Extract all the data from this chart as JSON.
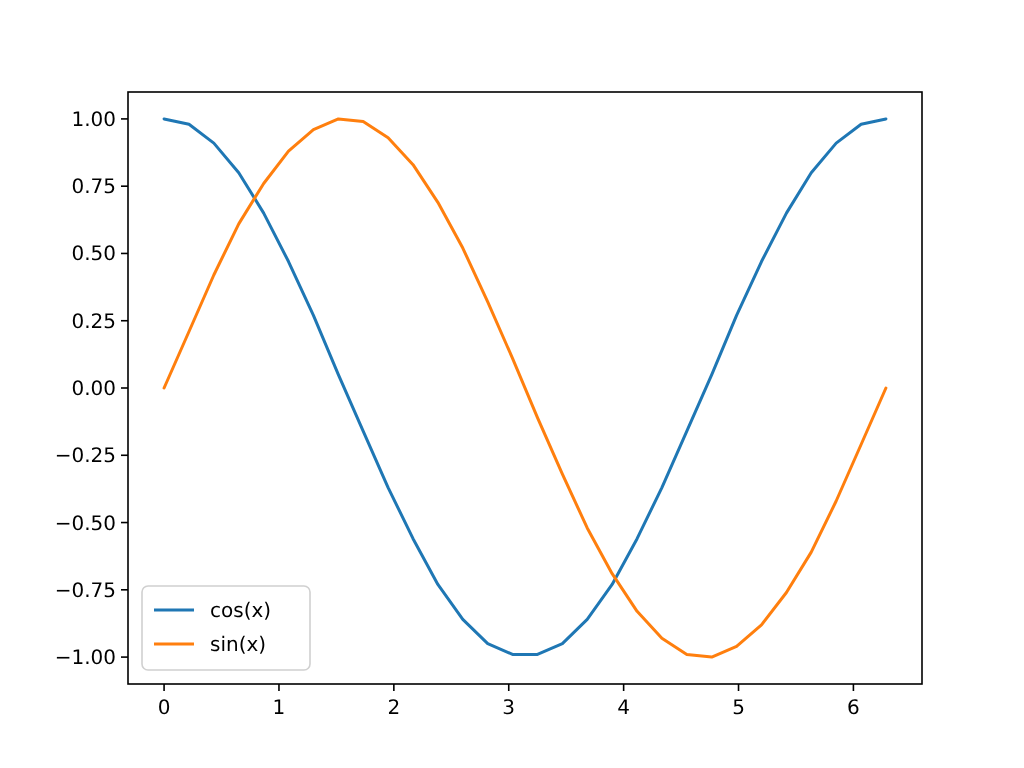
{
  "chart_data": {
    "type": "line",
    "x": [
      0,
      0.217,
      0.433,
      0.65,
      0.867,
      1.083,
      1.3,
      1.517,
      1.733,
      1.95,
      2.167,
      2.383,
      2.6,
      2.817,
      3.033,
      3.25,
      3.467,
      3.683,
      3.9,
      4.117,
      4.333,
      4.55,
      4.767,
      4.983,
      5.2,
      5.417,
      5.633,
      5.85,
      6.067,
      6.283
    ],
    "series": [
      {
        "name": "cos(x)",
        "color": "#1f77b4",
        "values": [
          1,
          0.98,
          0.91,
          0.8,
          0.65,
          0.47,
          0.27,
          0.05,
          -0.16,
          -0.37,
          -0.56,
          -0.73,
          -0.86,
          -0.95,
          -0.99,
          -0.99,
          -0.95,
          -0.86,
          -0.73,
          -0.56,
          -0.37,
          -0.16,
          0.05,
          0.27,
          0.47,
          0.65,
          0.8,
          0.91,
          0.98,
          1
        ]
      },
      {
        "name": "sin(x)",
        "color": "#ff7f0e",
        "values": [
          0,
          0.21,
          0.42,
          0.61,
          0.76,
          0.88,
          0.96,
          1,
          0.99,
          0.93,
          0.83,
          0.69,
          0.52,
          0.32,
          0.11,
          -0.11,
          -0.32,
          -0.52,
          -0.69,
          -0.83,
          -0.93,
          -0.99,
          -1,
          -0.96,
          -0.88,
          -0.76,
          -0.61,
          -0.42,
          -0.21,
          0
        ]
      }
    ],
    "xlim": [
      -0.314,
      6.597
    ],
    "xticks": [
      0,
      1,
      2,
      3,
      4,
      5,
      6
    ],
    "ylim": [
      -1.1,
      1.1
    ],
    "yticks": [
      {
        "value": -1,
        "label": "−1.00"
      },
      {
        "value": -0.75,
        "label": "−0.75"
      },
      {
        "value": -0.5,
        "label": "−0.50"
      },
      {
        "value": -0.25,
        "label": "−0.25"
      },
      {
        "value": 0,
        "label": "0.00"
      },
      {
        "value": 0.25,
        "label": "0.25"
      },
      {
        "value": 0.5,
        "label": "0.50"
      },
      {
        "value": 0.75,
        "label": "0.75"
      },
      {
        "value": 1,
        "label": "1.00"
      }
    ],
    "legend": "bottom left",
    "marker": "none",
    "line_style": "solid",
    "grid": false
  }
}
